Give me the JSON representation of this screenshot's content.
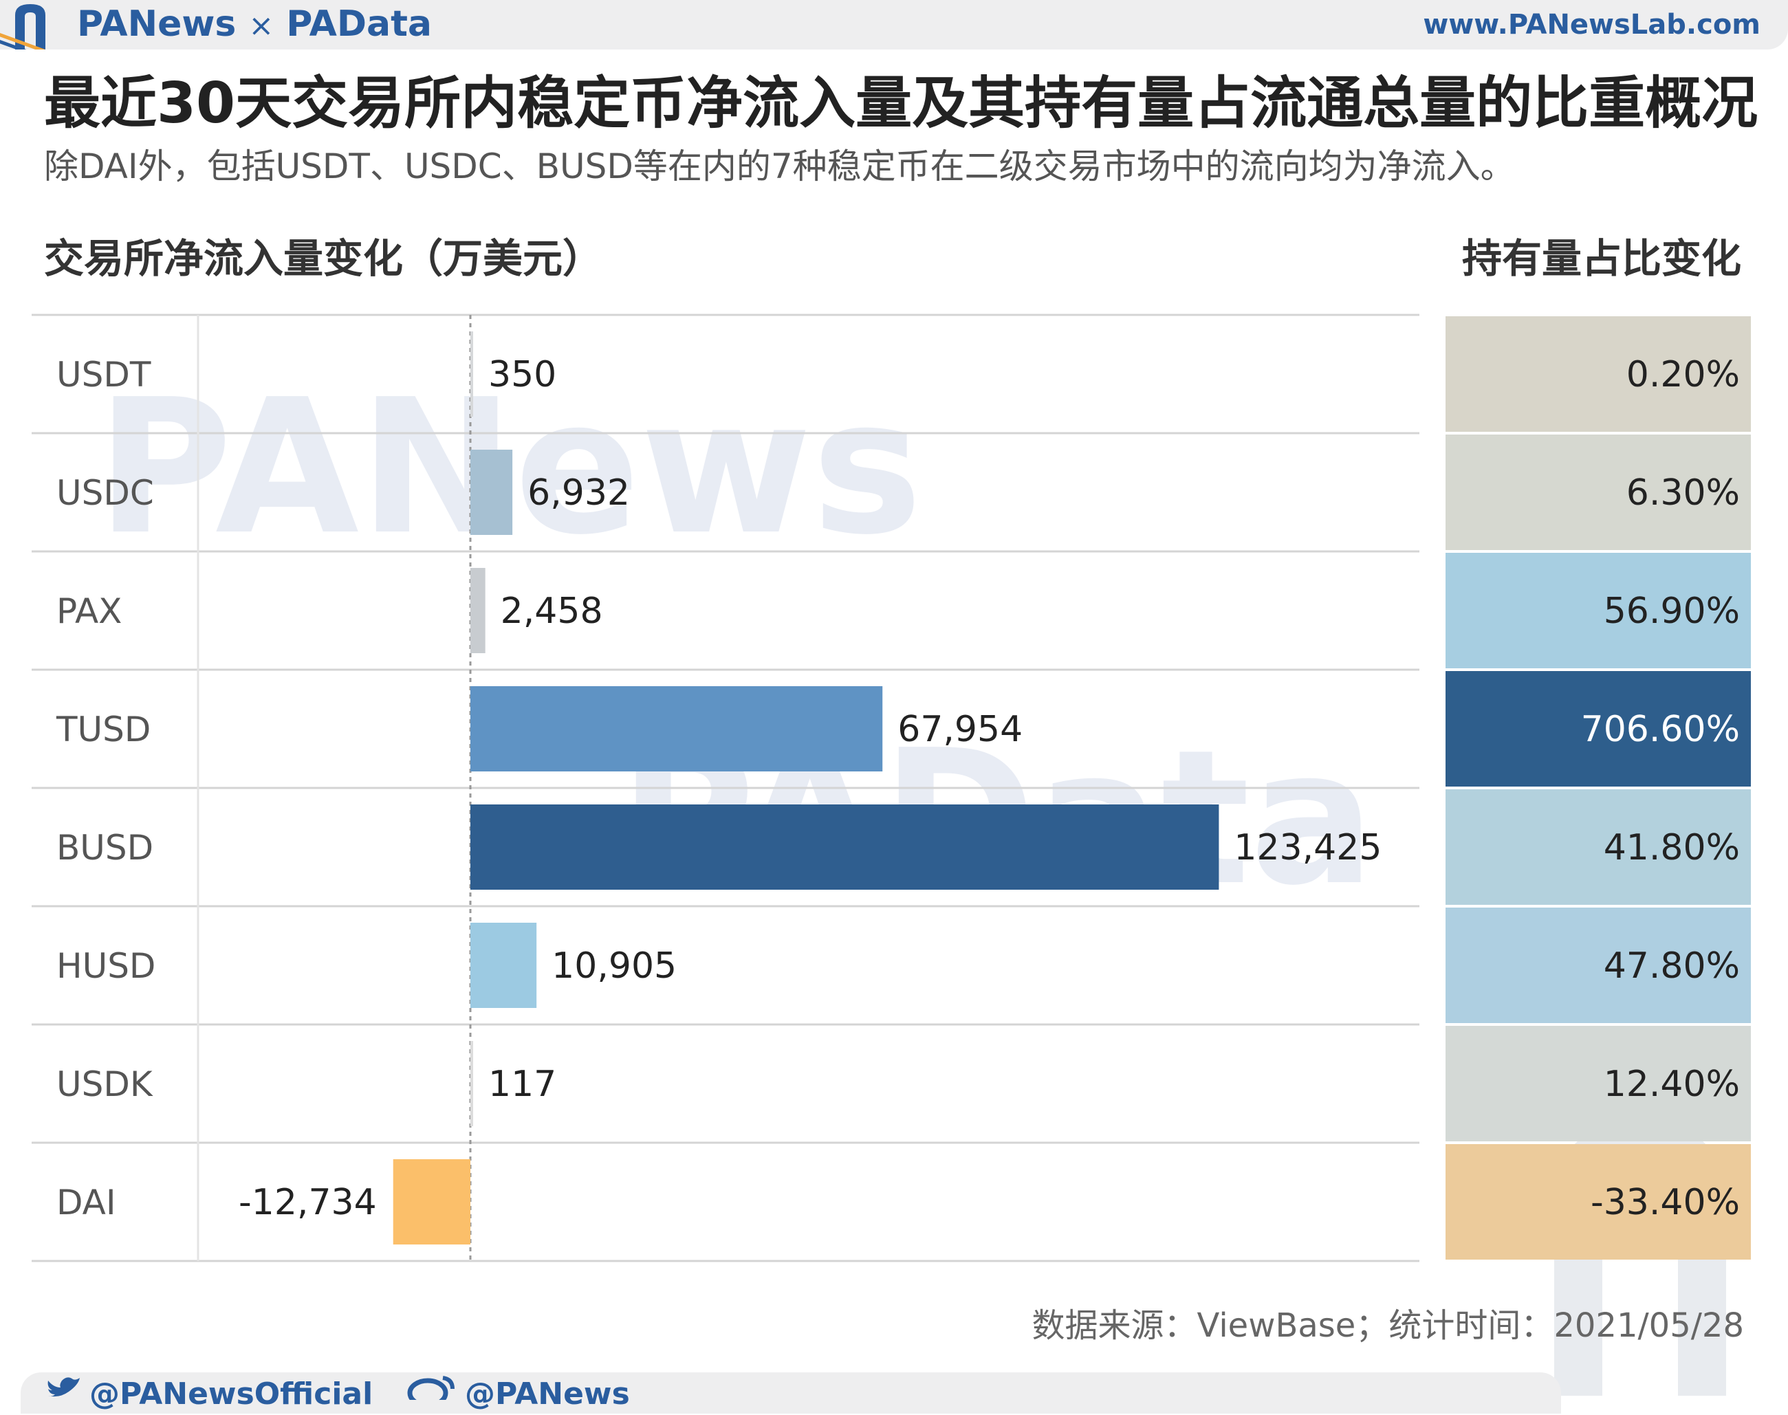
{
  "header": {
    "brand_left": "PANews",
    "brand_sep": "×",
    "brand_right": "PAData",
    "site": "www.PANewsLab.com"
  },
  "title": "最近30天交易所内稳定币净流入量及其持有量占流通总量的比重概况",
  "subtitle": "除DAI外，包括USDT、USDC、BUSD等在内的7种稳定币在二级交易市场中的流向均为净流入。",
  "left_header": "交易所净流入量变化（万美元）",
  "right_header": "持有量占比变化",
  "watermark": {
    "top": "PANews",
    "middle": "PAData"
  },
  "chart_data": {
    "type": "bar",
    "orientation": "horizontal",
    "xlabel": "交易所净流入量变化（万美元）",
    "categories": [
      "USDT",
      "USDC",
      "PAX",
      "TUSD",
      "BUSD",
      "HUSD",
      "USDK",
      "DAI"
    ],
    "values": [
      350,
      6932,
      2458,
      67954,
      123425,
      10905,
      117,
      -12734
    ],
    "value_labels": [
      "350",
      "6,932",
      "2,458",
      "67,954",
      "123,425",
      "10,905",
      "117",
      "-12,734"
    ],
    "bar_colors": [
      "#d6d8da",
      "#a6c0d2",
      "#c8ccd0",
      "#5f93c4",
      "#2f5e8f",
      "#9ccae2",
      "#dcdcdc",
      "#fbbf6a"
    ],
    "xlim": [
      -44680,
      155000
    ],
    "share_label": "持有量占比变化",
    "share_values": [
      0.2,
      6.3,
      56.9,
      706.6,
      41.8,
      47.8,
      12.4,
      -33.4
    ],
    "share_labels": [
      "0.20%",
      "6.30%",
      "56.90%",
      "706.60%",
      "41.80%",
      "47.80%",
      "12.40%",
      "-33.40%"
    ],
    "share_colors": [
      "#d8d5c9",
      "#d6d8d0",
      "#a7cee1",
      "#2e5e8c",
      "#b3d1dd",
      "#aecfe1",
      "#d4d9d6",
      "#eccb9b"
    ],
    "share_text_colors": [
      "#222222",
      "#222222",
      "#222222",
      "#ffffff",
      "#222222",
      "#222222",
      "#222222",
      "#222222"
    ]
  },
  "footer": {
    "source": "数据来源：ViewBase；统计时间：2021/05/28",
    "twitter": "@PANewsOfficial",
    "weibo": "@PANews"
  }
}
